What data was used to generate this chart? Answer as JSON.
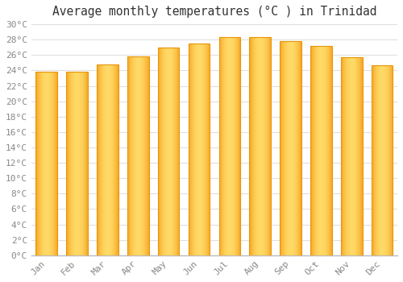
{
  "title": "Average monthly temperatures (°C ) in Trinidad",
  "months": [
    "Jan",
    "Feb",
    "Mar",
    "Apr",
    "May",
    "Jun",
    "Jul",
    "Aug",
    "Sep",
    "Oct",
    "Nov",
    "Dec"
  ],
  "values": [
    23.8,
    23.8,
    24.8,
    25.8,
    27.0,
    27.5,
    28.3,
    28.3,
    27.8,
    27.2,
    25.7,
    24.7
  ],
  "bar_color_center": "#FFD966",
  "bar_color_edge": "#F5A623",
  "bar_border_color": "#E8960A",
  "ylim": [
    0,
    30
  ],
  "ytick_step": 2,
  "background_color": "#FFFFFF",
  "grid_color": "#E0E0E0",
  "title_fontsize": 10.5,
  "tick_fontsize": 8,
  "tick_color": "#888888",
  "font_family": "monospace"
}
